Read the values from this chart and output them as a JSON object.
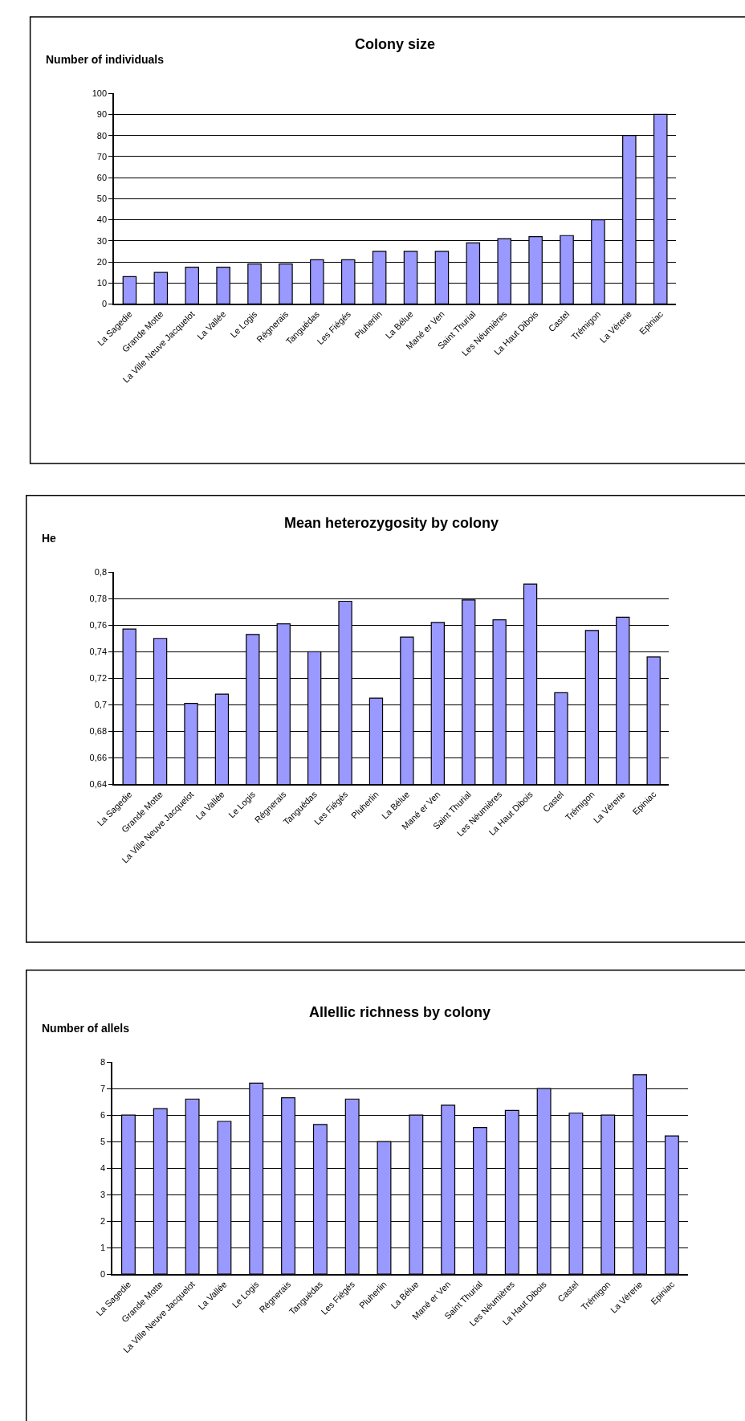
{
  "chart_data": [
    {
      "type": "bar",
      "title": "Colony size",
      "ylabel": "Number of individuals",
      "categories": [
        "La Sagedie",
        "Grande Motte",
        "La Ville Neuve Jacquelot",
        "La Vallée",
        "Le Logis",
        "Régnerais",
        "Tanguédas",
        "Les Fiégés",
        "Pluherlin",
        "La Bélue",
        "Mané er Ven",
        "Saint Thurial",
        "Les Néumières",
        "La Haut Dibois",
        "Castel",
        "Trémigon",
        "La Vérerie",
        "Epiniac"
      ],
      "values": [
        13,
        15,
        17.5,
        17.5,
        19,
        19,
        21,
        21,
        25,
        25,
        25,
        29,
        31,
        32,
        32.5,
        40,
        80,
        90
      ],
      "color": "#9999ff",
      "ylim": [
        0,
        100
      ],
      "yticks": [
        0,
        10,
        20,
        30,
        40,
        50,
        60,
        70,
        80,
        90,
        100
      ],
      "grid": "y"
    },
    {
      "type": "bar",
      "title": "Mean heterozygosity by colony",
      "ylabel": "He",
      "categories": [
        "La Sagedie",
        "Grande Motte",
        "La Ville Neuve Jacquelot",
        "La Vallée",
        "Le Logis",
        "Régnerais",
        "Tanguédas",
        "Les Fiégés",
        "Pluherlin",
        "La Bélue",
        "Mané er Ven",
        "Saint Thurial",
        "Les Néumières",
        "La Haut Dibois",
        "Castel",
        "Trémigon",
        "La Vérerie",
        "Epiniac"
      ],
      "values": [
        0.757,
        0.75,
        0.701,
        0.708,
        0.753,
        0.761,
        0.74,
        0.778,
        0.705,
        0.751,
        0.762,
        0.779,
        0.764,
        0.791,
        0.709,
        0.756,
        0.766,
        0.736
      ],
      "color": "#9999ff",
      "ylim": [
        0.64,
        0.8
      ],
      "yticks": [
        {
          "value": 0.64,
          "label": "0,64"
        },
        {
          "value": 0.66,
          "label": "0,66"
        },
        {
          "value": 0.68,
          "label": "0,68"
        },
        {
          "value": 0.7,
          "label": "0,7"
        },
        {
          "value": 0.72,
          "label": "0,72"
        },
        {
          "value": 0.74,
          "label": "0,74"
        },
        {
          "value": 0.76,
          "label": "0,76"
        },
        {
          "value": 0.78,
          "label": "0,78"
        },
        {
          "value": 0.8,
          "label": "0,8"
        }
      ],
      "grid": "y"
    },
    {
      "type": "bar",
      "title": "Allellic richness by colony",
      "ylabel": "Number of allels",
      "categories": [
        "La Sagedie",
        "Grande Motte",
        "La Ville Neuve Jacquelot",
        "La Vallée",
        "Le Logis",
        "Régnerais",
        "Tanguédas",
        "Les Fiégés",
        "Pluherlin",
        "La Bélue",
        "Mané er Ven",
        "Saint Thurial",
        "Les Néumières",
        "La Haut Dibois",
        "Castel",
        "Trémigon",
        "La Vérerie",
        "Epiniac"
      ],
      "values": [
        6.0,
        6.24,
        6.6,
        5.76,
        7.2,
        6.65,
        5.64,
        6.6,
        5.0,
        6.0,
        6.37,
        5.53,
        6.17,
        7.0,
        6.07,
        6.0,
        7.52,
        5.21
      ],
      "color": "#9999ff",
      "ylim": [
        0,
        8
      ],
      "yticks": [
        0,
        1,
        2,
        3,
        4,
        5,
        6,
        7,
        8
      ],
      "grid": "y"
    }
  ]
}
